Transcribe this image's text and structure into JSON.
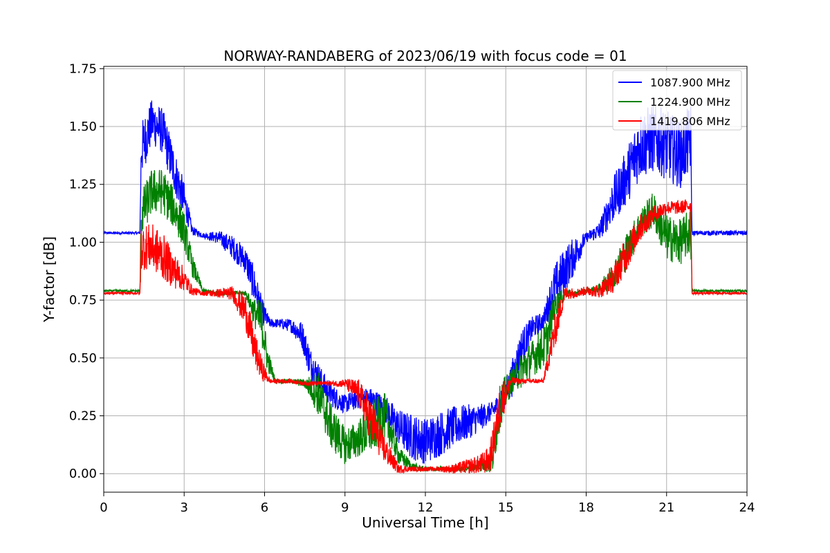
{
  "chart_data": {
    "type": "line",
    "title": "NORWAY-RANDABERG of 2023/06/19 with focus code = 01",
    "xlabel": "Universal Time [h]",
    "ylabel": "Y-factor [dB]",
    "xlim": [
      0,
      24
    ],
    "ylim": [
      -0.08,
      1.76
    ],
    "xticks": [
      0,
      3,
      6,
      9,
      12,
      15,
      18,
      21,
      24
    ],
    "xtick_labels": [
      "0",
      "3",
      "6",
      "9",
      "12",
      "15",
      "18",
      "21",
      "24"
    ],
    "yticks": [
      0.0,
      0.25,
      0.5,
      0.75,
      1.0,
      1.25,
      1.5,
      1.75
    ],
    "ytick_labels": [
      "0.00",
      "0.25",
      "0.50",
      "0.75",
      "1.00",
      "1.25",
      "1.50",
      "1.75"
    ],
    "grid": true,
    "legend_position": "top-right",
    "series": [
      {
        "name": "1087.900 MHz",
        "color": "#0000ff",
        "x": [
          0,
          1.35,
          1.4,
          1.8,
          2.2,
          2.6,
          3.0,
          3.3,
          3.7,
          4.3,
          4.8,
          5.3,
          5.6,
          5.9,
          6.2,
          6.5,
          7.0,
          7.4,
          7.7,
          8.2,
          8.6,
          9.0,
          9.5,
          10.0,
          10.5,
          11.0,
          11.5,
          12.0,
          12.5,
          13.0,
          13.5,
          14.0,
          14.5,
          14.9,
          15.2,
          15.6,
          16.0,
          16.4,
          16.8,
          17.2,
          17.6,
          18.0,
          18.5,
          19.0,
          19.5,
          20.0,
          20.5,
          21.0,
          21.5,
          21.9,
          21.95,
          22.5,
          23.0,
          24.0
        ],
        "y": [
          1.04,
          1.04,
          1.4,
          1.52,
          1.48,
          1.32,
          1.18,
          1.05,
          1.03,
          1.02,
          0.98,
          0.92,
          0.82,
          0.7,
          0.65,
          0.65,
          0.64,
          0.6,
          0.48,
          0.38,
          0.33,
          0.3,
          0.33,
          0.32,
          0.28,
          0.2,
          0.16,
          0.14,
          0.17,
          0.2,
          0.22,
          0.24,
          0.27,
          0.32,
          0.4,
          0.55,
          0.63,
          0.66,
          0.8,
          0.88,
          0.95,
          1.02,
          1.05,
          1.18,
          1.28,
          1.42,
          1.45,
          1.42,
          1.38,
          1.45,
          1.04,
          1.04,
          1.04,
          1.04
        ],
        "noise": [
          0.005,
          0.005,
          0.12,
          0.1,
          0.1,
          0.1,
          0.08,
          0.02,
          0.01,
          0.03,
          0.05,
          0.06,
          0.08,
          0.06,
          0.02,
          0.02,
          0.03,
          0.06,
          0.07,
          0.06,
          0.05,
          0.04,
          0.05,
          0.05,
          0.06,
          0.08,
          0.1,
          0.1,
          0.1,
          0.09,
          0.08,
          0.06,
          0.04,
          0.06,
          0.08,
          0.08,
          0.05,
          0.04,
          0.1,
          0.1,
          0.08,
          0.02,
          0.04,
          0.1,
          0.12,
          0.15,
          0.15,
          0.15,
          0.15,
          0.15,
          0.01,
          0.01,
          0.01,
          0.01
        ]
      },
      {
        "name": "1224.900 MHz",
        "color": "#008000",
        "x": [
          0,
          1.35,
          1.4,
          1.8,
          2.2,
          2.6,
          3.0,
          3.3,
          3.7,
          4.3,
          4.8,
          5.3,
          5.6,
          5.9,
          6.1,
          6.4,
          7.0,
          7.5,
          8.0,
          8.5,
          9.0,
          9.5,
          10.0,
          10.5,
          11.0,
          11.5,
          12.0,
          12.5,
          13.0,
          13.5,
          14.0,
          14.5,
          14.8,
          15.2,
          15.6,
          16.0,
          16.5,
          16.8,
          17.2,
          17.6,
          18.0,
          18.5,
          19.0,
          19.5,
          20.0,
          20.5,
          21.0,
          21.5,
          21.9,
          21.95,
          22.5,
          23.0,
          24.0
        ],
        "y": [
          0.79,
          0.79,
          1.12,
          1.22,
          1.22,
          1.15,
          1.05,
          0.9,
          0.79,
          0.78,
          0.78,
          0.78,
          0.7,
          0.65,
          0.5,
          0.4,
          0.4,
          0.39,
          0.35,
          0.2,
          0.12,
          0.15,
          0.2,
          0.25,
          0.08,
          0.03,
          0.02,
          0.02,
          0.02,
          0.02,
          0.03,
          0.05,
          0.3,
          0.4,
          0.45,
          0.5,
          0.56,
          0.72,
          0.78,
          0.78,
          0.79,
          0.8,
          0.86,
          0.96,
          1.08,
          1.14,
          1.02,
          1.0,
          1.05,
          0.79,
          0.79,
          0.79,
          0.79
        ],
        "noise": [
          0.005,
          0.005,
          0.1,
          0.1,
          0.1,
          0.09,
          0.08,
          0.05,
          0.01,
          0.01,
          0.01,
          0.01,
          0.06,
          0.1,
          0.06,
          0.01,
          0.01,
          0.02,
          0.1,
          0.1,
          0.08,
          0.08,
          0.12,
          0.1,
          0.04,
          0.02,
          0.01,
          0.01,
          0.01,
          0.01,
          0.02,
          0.05,
          0.1,
          0.05,
          0.08,
          0.08,
          0.1,
          0.06,
          0.02,
          0.01,
          0.01,
          0.02,
          0.06,
          0.08,
          0.06,
          0.08,
          0.1,
          0.1,
          0.1,
          0.005,
          0.005,
          0.005,
          0.005
        ]
      },
      {
        "name": "1419.806 MHz",
        "color": "#ff0000",
        "x": [
          0,
          1.35,
          1.4,
          1.8,
          2.2,
          2.6,
          3.0,
          3.3,
          3.7,
          4.3,
          4.8,
          5.3,
          5.6,
          5.9,
          6.2,
          6.5,
          7.0,
          7.5,
          8.0,
          8.5,
          9.0,
          9.5,
          10.0,
          10.5,
          11.0,
          11.5,
          12.0,
          12.5,
          13.0,
          13.5,
          14.0,
          14.4,
          14.8,
          15.2,
          15.6,
          16.0,
          16.4,
          16.8,
          17.2,
          17.6,
          18.0,
          18.5,
          19.0,
          19.5,
          20.0,
          20.5,
          21.0,
          21.5,
          21.9,
          21.95,
          22.5,
          23.0,
          24.0
        ],
        "y": [
          0.78,
          0.78,
          0.98,
          0.98,
          0.94,
          0.88,
          0.84,
          0.79,
          0.78,
          0.78,
          0.78,
          0.7,
          0.55,
          0.45,
          0.4,
          0.4,
          0.4,
          0.39,
          0.39,
          0.39,
          0.39,
          0.35,
          0.22,
          0.1,
          0.02,
          0.02,
          0.02,
          0.02,
          0.02,
          0.03,
          0.04,
          0.06,
          0.3,
          0.4,
          0.4,
          0.4,
          0.4,
          0.6,
          0.78,
          0.78,
          0.79,
          0.79,
          0.84,
          0.95,
          1.06,
          1.12,
          1.15,
          1.15,
          1.16,
          0.78,
          0.78,
          0.78,
          0.78
        ],
        "noise": [
          0.005,
          0.005,
          0.1,
          0.1,
          0.1,
          0.08,
          0.05,
          0.02,
          0.01,
          0.02,
          0.03,
          0.08,
          0.08,
          0.05,
          0.01,
          0.01,
          0.01,
          0.01,
          0.01,
          0.01,
          0.02,
          0.06,
          0.1,
          0.06,
          0.02,
          0.01,
          0.01,
          0.01,
          0.02,
          0.03,
          0.04,
          0.06,
          0.1,
          0.02,
          0.01,
          0.01,
          0.01,
          0.08,
          0.03,
          0.02,
          0.02,
          0.03,
          0.06,
          0.08,
          0.06,
          0.04,
          0.03,
          0.03,
          0.03,
          0.005,
          0.005,
          0.005,
          0.005
        ]
      }
    ]
  }
}
